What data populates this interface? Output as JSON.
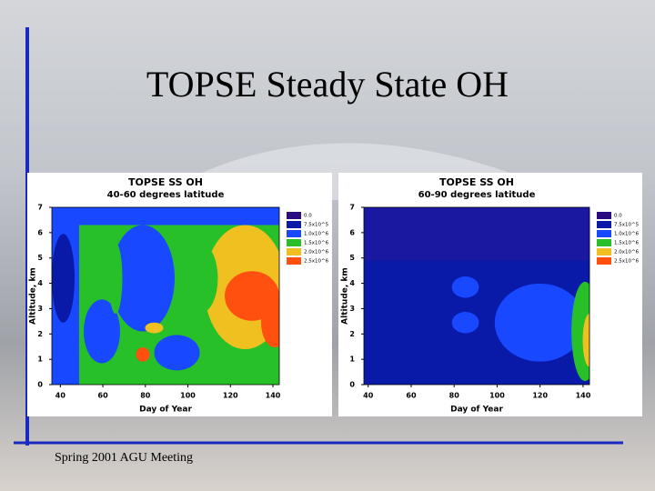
{
  "slide": {
    "title": "TOPSE Steady State OH",
    "footer": "Spring 2001 AGU Meeting"
  },
  "chart_data": [
    {
      "type": "contour",
      "title": "TOPSE SS OH",
      "subtitle": "40-60 degrees latitude",
      "xlabel": "Day of Year",
      "ylabel": "Altitude, km",
      "xlim": [
        36,
        143
      ],
      "ylim": [
        0,
        7
      ],
      "xticks": [
        40,
        60,
        80,
        100,
        120,
        140
      ],
      "yticks": [
        0,
        1,
        2,
        3,
        4,
        5,
        6,
        7
      ],
      "legend": [
        {
          "label": "0.0",
          "color": "#2a0a80"
        },
        {
          "label": "7.5x10^5",
          "color": "#0a1aa8"
        },
        {
          "label": "1.0x10^6",
          "color": "#1848ff"
        },
        {
          "label": "1.5x10^6",
          "color": "#28c028"
        },
        {
          "label": "2.0x10^6",
          "color": "#f0c020"
        },
        {
          "label": "2.5x10^6",
          "color": "#ff5010"
        }
      ]
    },
    {
      "type": "contour",
      "title": "TOPSE SS OH",
      "subtitle": "60-90 degrees latitude",
      "xlabel": "Day of Year",
      "ylabel": "Altitude, km",
      "xlim": [
        38,
        143
      ],
      "ylim": [
        0,
        7
      ],
      "xticks": [
        40,
        60,
        80,
        100,
        120,
        140
      ],
      "yticks": [
        0,
        1,
        2,
        3,
        4,
        5,
        6,
        7
      ],
      "legend": [
        {
          "label": "0.0",
          "color": "#2a0a80"
        },
        {
          "label": "7.5x10^5",
          "color": "#0a1aa8"
        },
        {
          "label": "1.0x10^6",
          "color": "#1848ff"
        },
        {
          "label": "1.5x10^6",
          "color": "#28c028"
        },
        {
          "label": "2.0x10^6",
          "color": "#f0c020"
        },
        {
          "label": "2.5x10^6",
          "color": "#ff5010"
        }
      ]
    }
  ]
}
